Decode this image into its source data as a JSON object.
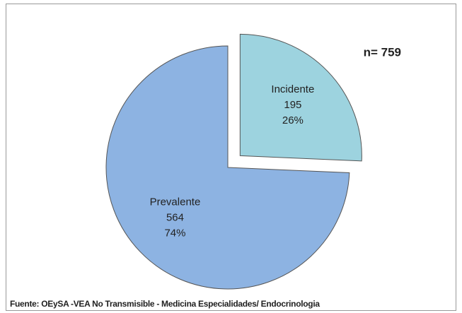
{
  "chart_data": {
    "type": "pie",
    "categories": [
      "Incidente",
      "Prevalente"
    ],
    "values": [
      195,
      564
    ],
    "percent_labels": [
      "26%",
      "74%"
    ],
    "colors": [
      "#9dd3df",
      "#8db3e2"
    ],
    "exploded": [
      true,
      false
    ],
    "annotation": "n= 759",
    "source": "Fuente: OEySA -VEA No Transmisible - Medicina Especialidades/ Endocrinologia"
  }
}
